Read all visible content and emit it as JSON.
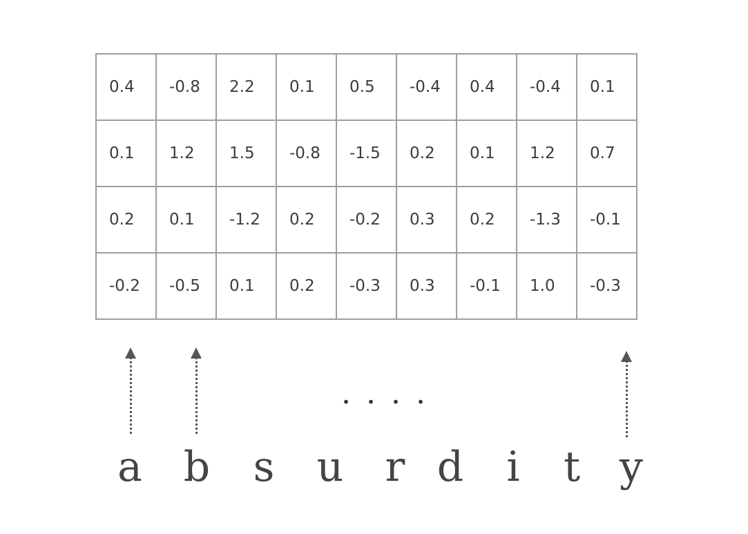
{
  "matrix": [
    [
      "0.4",
      "-0.8",
      "2.2",
      "0.1",
      "0.5",
      "-0.4",
      "0.4",
      "-0.4",
      "0.1"
    ],
    [
      "0.1",
      "1.2",
      "1.5",
      "-0.8",
      "-1.5",
      "0.2",
      "0.1",
      "1.2",
      "0.7"
    ],
    [
      "0.2",
      "0.1",
      "-1.2",
      "0.2",
      "-0.2",
      "0.3",
      "0.2",
      "-1.3",
      "-0.1"
    ],
    [
      "-0.2",
      "-0.5",
      "0.1",
      "0.2",
      "-0.3",
      "0.3",
      "-0.1",
      "1.0",
      "-0.3"
    ]
  ],
  "ellipsis": "....",
  "letters": [
    "a",
    "b",
    "s",
    "u",
    "r",
    "d",
    "i",
    "t",
    "y"
  ]
}
